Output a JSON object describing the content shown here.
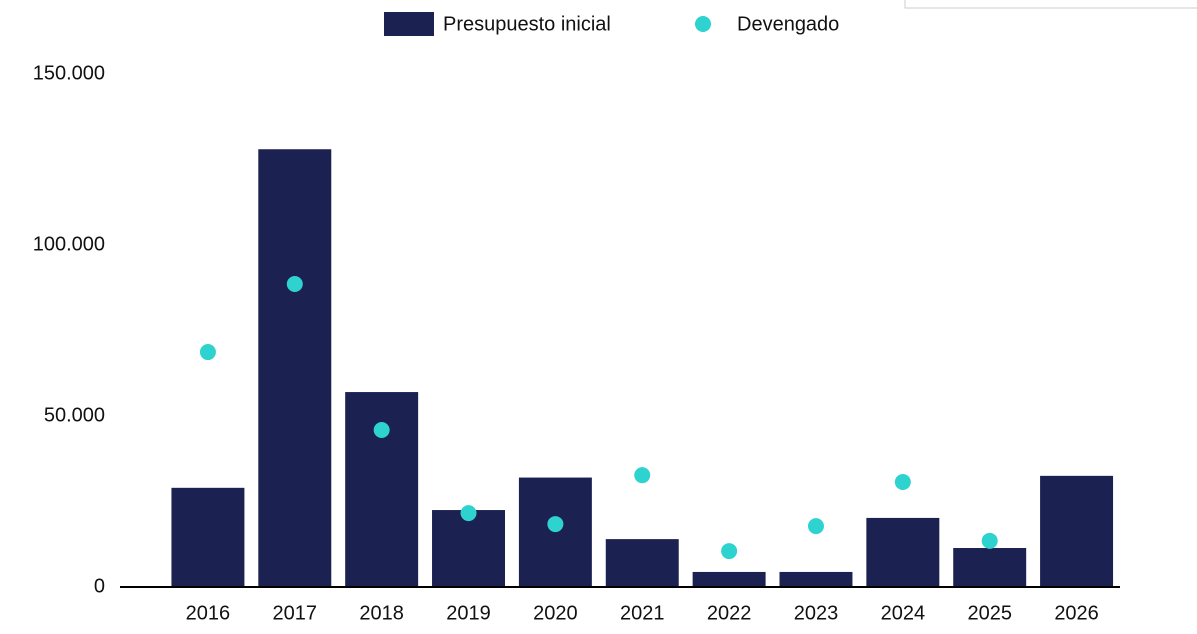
{
  "chart_data": {
    "type": "bar",
    "categories": [
      "2016",
      "2017",
      "2018",
      "2019",
      "2020",
      "2021",
      "2022",
      "2023",
      "2024",
      "2025",
      "2026"
    ],
    "series": [
      {
        "name": "Presupuesto inicial",
        "color": "#1b2150",
        "kind": "bar",
        "values": [
          29000,
          128000,
          57000,
          22500,
          32000,
          14000,
          4400,
          4400,
          20200,
          11400,
          32500
        ]
      },
      {
        "name": "Devengado",
        "color": "#2ed3cf",
        "kind": "dot",
        "values": [
          68700,
          88600,
          45900,
          21600,
          18400,
          32700,
          10500,
          17800,
          30700,
          13500,
          null
        ]
      }
    ],
    "ylim": [
      0,
      150000
    ],
    "yticks": [
      0,
      {
        "value": 50000,
        "label": "50.000"
      },
      {
        "value": 100000,
        "label": "100.000"
      },
      {
        "value": 150000,
        "label": "150.000"
      }
    ],
    "grid": false,
    "legend": "top"
  }
}
